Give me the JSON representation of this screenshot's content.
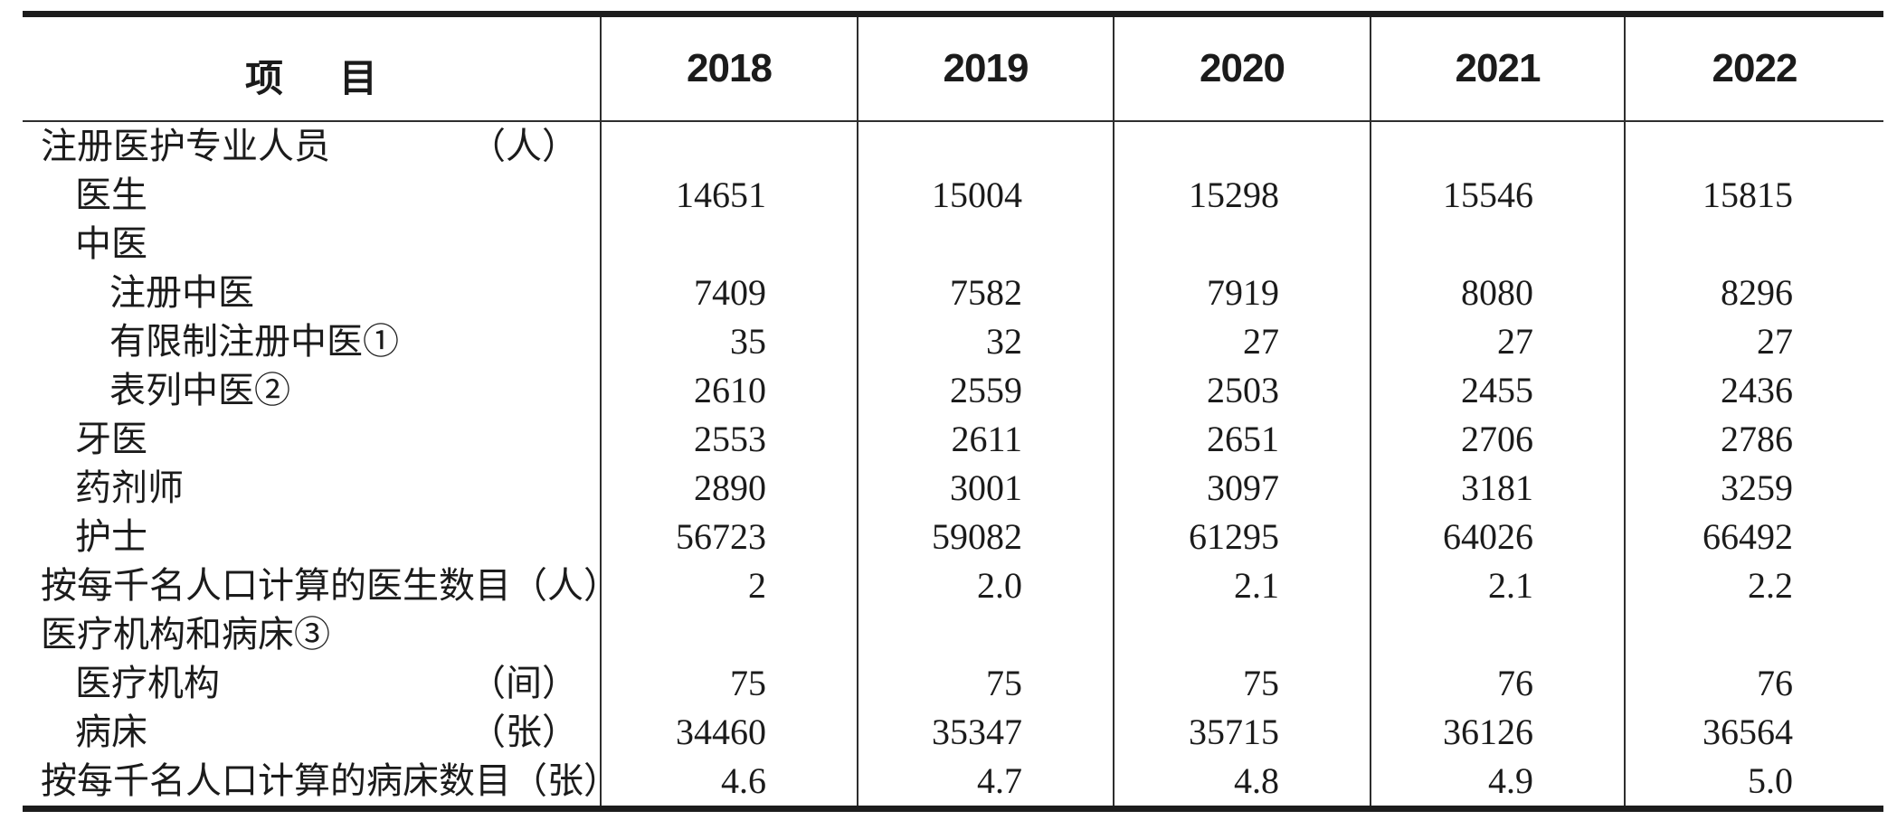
{
  "page": {
    "background": "#ffffff",
    "ink": "#1b1b1b",
    "thick_rule": "#1c1c1c",
    "thin_rule": "#2e2e2e"
  },
  "table": {
    "item_header_chars": [
      "项",
      "目"
    ],
    "years": [
      "2018",
      "2019",
      "2020",
      "2021",
      "2022"
    ],
    "rows": [
      {
        "label": "注册医护专业人员",
        "unit": "（人）",
        "indent": 0,
        "values": [
          "",
          "",
          "",
          "",
          ""
        ]
      },
      {
        "label": "医生",
        "unit": "",
        "indent": 1,
        "values": [
          "14651",
          "15004",
          "15298",
          "15546",
          "15815"
        ]
      },
      {
        "label": "中医",
        "unit": "",
        "indent": 1,
        "values": [
          "",
          "",
          "",
          "",
          ""
        ]
      },
      {
        "label": "注册中医",
        "unit": "",
        "indent": 2,
        "values": [
          "7409",
          "7582",
          "7919",
          "8080",
          "8296"
        ]
      },
      {
        "label": "有限制注册中医①",
        "unit": "",
        "indent": 2,
        "values": [
          "35",
          "32",
          "27",
          "27",
          "27"
        ]
      },
      {
        "label": "表列中医②",
        "unit": "",
        "indent": 2,
        "values": [
          "2610",
          "2559",
          "2503",
          "2455",
          "2436"
        ]
      },
      {
        "label": "牙医",
        "unit": "",
        "indent": 1,
        "values": [
          "2553",
          "2611",
          "2651",
          "2706",
          "2786"
        ]
      },
      {
        "label": "药剂师",
        "unit": "",
        "indent": 1,
        "values": [
          "2890",
          "3001",
          "3097",
          "3181",
          "3259"
        ]
      },
      {
        "label": "护士",
        "unit": "",
        "indent": 1,
        "values": [
          "56723",
          "59082",
          "61295",
          "64026",
          "66492"
        ]
      },
      {
        "label": "按每千名人口计算的医生数目",
        "unit": "（人）",
        "indent": 0,
        "values": [
          "2",
          "2.0",
          "2.1",
          "2.1",
          "2.2"
        ]
      },
      {
        "label": "医疗机构和病床③",
        "unit": "",
        "indent": 0,
        "values": [
          "",
          "",
          "",
          "",
          ""
        ]
      },
      {
        "label": "医疗机构",
        "unit": "（间）",
        "indent": 1,
        "values": [
          "75",
          "75",
          "75",
          "76",
          "76"
        ]
      },
      {
        "label": "病床",
        "unit": "（张）",
        "indent": 1,
        "values": [
          "34460",
          "35347",
          "35715",
          "36126",
          "36564"
        ]
      },
      {
        "label": "按每千名人口计算的病床数目",
        "unit": "（张）",
        "indent": 0,
        "values": [
          "4.6",
          "4.7",
          "4.8",
          "4.9",
          "5.0"
        ]
      }
    ]
  }
}
